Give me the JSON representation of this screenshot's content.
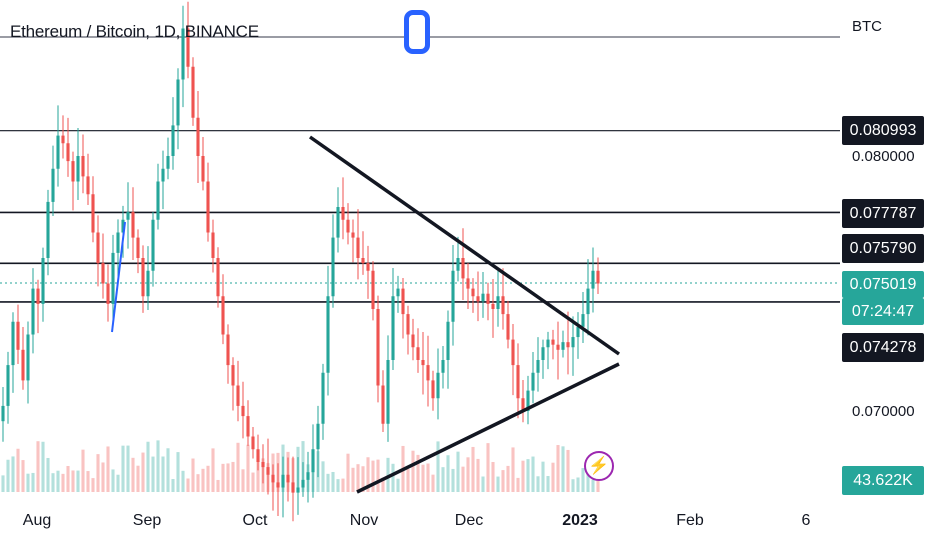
{
  "header": {
    "title": "Ethereum / Bitcoin, 1D, BINANCE",
    "unit": "BTC"
  },
  "price_axis": {
    "labels": [
      "0.080000",
      "0.070000"
    ],
    "badges": {
      "level_1": "0.080993",
      "level_2": "0.077787",
      "level_3": "0.075790",
      "last_price": "0.075019",
      "countdown": "07:24:47",
      "level_4": "0.074278",
      "volume": "43.622K"
    }
  },
  "time_axis": {
    "labels": [
      "Aug",
      "Sep",
      "Oct",
      "Nov",
      "Dec",
      "2023",
      "Feb",
      "6"
    ]
  },
  "colors": {
    "up": "#26a69a",
    "down": "#ef5350",
    "line": "#131722",
    "handle": "#2962ff",
    "alert": "#9c27b0"
  },
  "icons": {
    "drawing_handle": "rounded-rect-handle-icon",
    "alert": "lightning-icon"
  },
  "chart_data": {
    "type": "candlestick",
    "symbol": "Ethereum / Bitcoin",
    "interval": "1D",
    "exchange": "BINANCE",
    "unit": "BTC",
    "horizontal_levels": [
      0.080993,
      0.077787,
      0.07579,
      0.074278
    ],
    "last_price": 0.075019,
    "volume_last": "43.622K",
    "pattern": "symmetrical-triangle",
    "close_series": [
      0.0702,
      0.0718,
      0.0735,
      0.0724,
      0.0712,
      0.073,
      0.0748,
      0.0742,
      0.076,
      0.0782,
      0.0795,
      0.0808,
      0.0805,
      0.0798,
      0.079,
      0.08,
      0.0792,
      0.0785,
      0.077,
      0.0758,
      0.075,
      0.0742,
      0.0762,
      0.077,
      0.0775,
      0.0778,
      0.0768,
      0.076,
      0.0745,
      0.0755,
      0.0775,
      0.079,
      0.0795,
      0.08,
      0.0812,
      0.083,
      0.085,
      0.0835,
      0.0815,
      0.08,
      0.079,
      0.077,
      0.076,
      0.0745,
      0.073,
      0.0718,
      0.071,
      0.0702,
      0.0698,
      0.069,
      0.0685,
      0.068,
      0.0678,
      0.0675,
      0.0672,
      0.067,
      0.0675,
      0.0672,
      0.0668,
      0.067,
      0.0673,
      0.0676,
      0.0685,
      0.0695,
      0.0715,
      0.0745,
      0.0768,
      0.078,
      0.0775,
      0.077,
      0.0768,
      0.076,
      0.0758,
      0.0755,
      0.074,
      0.071,
      0.0695,
      0.072,
      0.0745,
      0.0748,
      0.0738,
      0.073,
      0.0725,
      0.072,
      0.0718,
      0.0712,
      0.0705,
      0.0715,
      0.072,
      0.0735,
      0.0755,
      0.076,
      0.0752,
      0.0748,
      0.0745,
      0.0743,
      0.0746,
      0.0742,
      0.074,
      0.0745,
      0.0738,
      0.0728,
      0.0718,
      0.0705,
      0.07,
      0.0708,
      0.0715,
      0.072,
      0.0725,
      0.0728,
      0.0726,
      0.0724,
      0.0727,
      0.0725,
      0.0729,
      0.0733,
      0.0738,
      0.0748,
      0.0755,
      0.075
    ]
  }
}
